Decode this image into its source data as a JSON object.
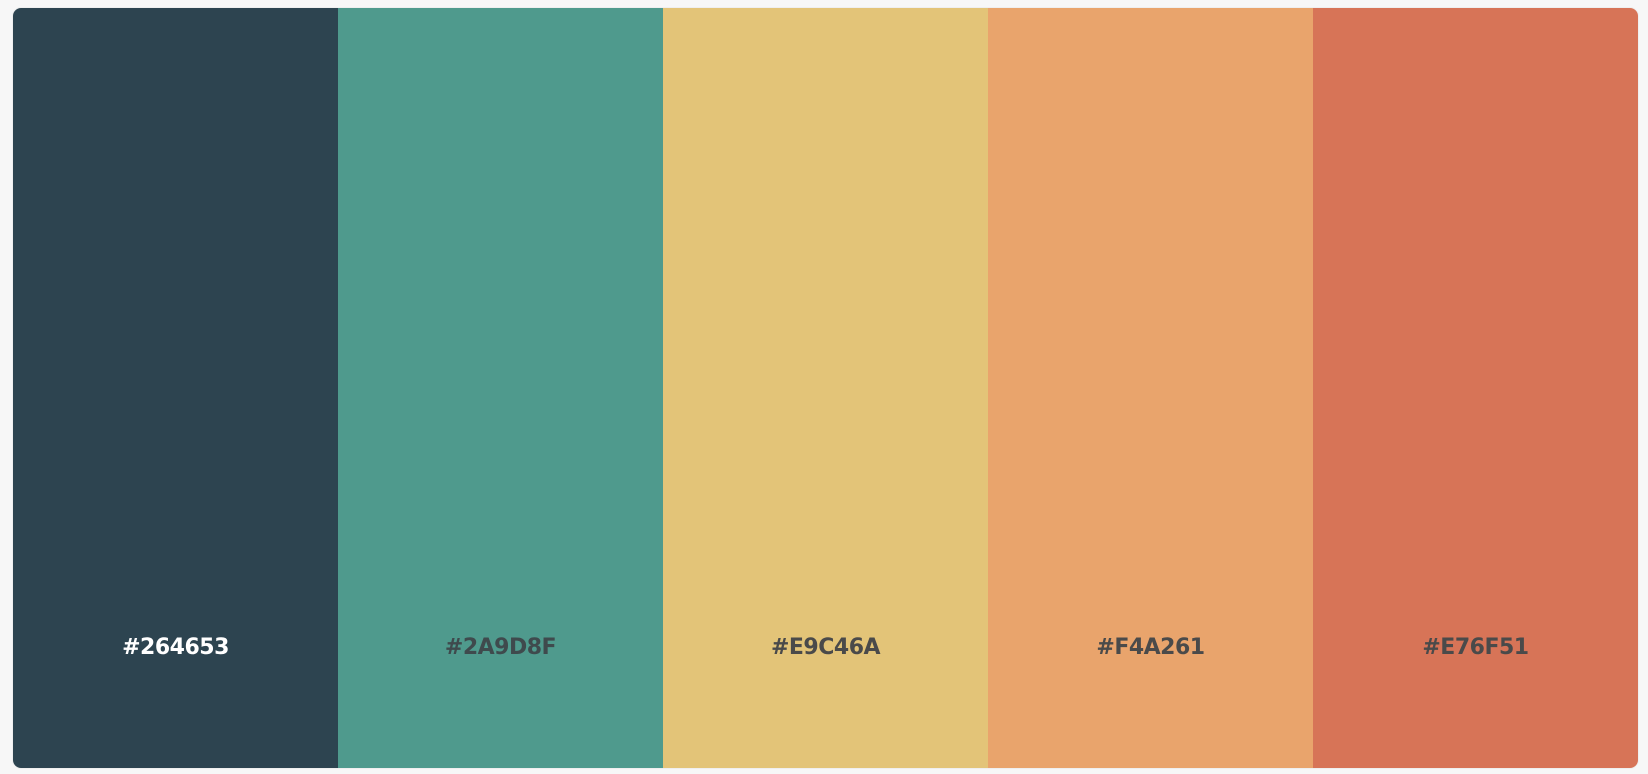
{
  "palette": {
    "swatches": [
      {
        "hex": "#264653",
        "fill": "#2d4450",
        "label_color": "#ffffff"
      },
      {
        "hex": "#2A9D8F",
        "fill": "#4f9a8d",
        "label_color": "#3f4a4d"
      },
      {
        "hex": "#E9C46A",
        "fill": "#e3c478",
        "label_color": "#4a4a4a"
      },
      {
        "hex": "#F4A261",
        "fill": "#e9a46c",
        "label_color": "#4a4a4a"
      },
      {
        "hex": "#E76F51",
        "fill": "#d77457",
        "label_color": "#4a4a4a"
      }
    ]
  }
}
